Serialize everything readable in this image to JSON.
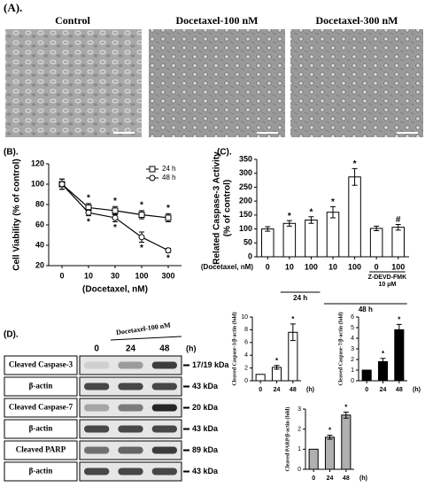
{
  "panels": {
    "a": "(A).",
    "b": "(B).",
    "c": "(C).",
    "d": "(D)."
  },
  "image_labels": [
    "Control",
    "Docetaxel-100 nM",
    "Docetaxel-300 nM"
  ],
  "blot": {
    "treatment": "Docetaxel-100 nM",
    "times": [
      "0",
      "24",
      "48"
    ],
    "time_unit": "(h)",
    "rows": [
      {
        "label": "Cleaved Caspase-3",
        "size": "17/19 kDa"
      },
      {
        "label": "β-actin",
        "size": "43 kDa"
      },
      {
        "label": "Cleaved Caspase-7",
        "size": "20 kDa"
      },
      {
        "label": "β-actin",
        "size": "43 kDa"
      },
      {
        "label": "Cleaved PARP",
        "size": "89 kDa"
      },
      {
        "label": "β-actin",
        "size": "43 kDa"
      }
    ]
  },
  "chart_data": [
    {
      "type": "line",
      "x_label": "(Docetaxel, nM)",
      "y_label": "Cell Viability (% of control)",
      "categories": [
        "0",
        "10",
        "30",
        "100",
        "300"
      ],
      "series": [
        {
          "name": "24 h",
          "marker": "square",
          "color": "#000000",
          "values": [
            100,
            77,
            74,
            70,
            67
          ],
          "errors": [
            5,
            4,
            4,
            4,
            4
          ],
          "annotations": [
            null,
            "*",
            "*",
            "*",
            "*"
          ]
        },
        {
          "name": "48 h",
          "marker": "circle",
          "color": "#000000",
          "values": [
            100,
            72,
            67,
            48,
            35
          ],
          "errors": [
            5,
            3,
            4,
            5,
            2
          ],
          "annotations": [
            null,
            "*",
            "*",
            "*",
            "*"
          ]
        }
      ],
      "ylim": [
        20,
        120
      ],
      "yticks": [
        20,
        40,
        60,
        80,
        100,
        120
      ],
      "legend": "upper right"
    },
    {
      "type": "bar",
      "y_label": "Related Caspase-3 Activity",
      "y_label_sub": "(% of control)",
      "x_label": "(Docetaxel, nM)",
      "categories": [
        "0",
        "10",
        "100",
        "10",
        "100",
        "0",
        "100"
      ],
      "values": [
        100,
        120,
        132,
        160,
        287,
        102,
        106
      ],
      "errors": [
        8,
        10,
        12,
        20,
        30,
        8,
        10
      ],
      "annotations": [
        null,
        "*",
        "*",
        "*",
        "*",
        null,
        "#"
      ],
      "color": "#ffffff",
      "ylim": [
        0,
        350
      ],
      "yticks": [
        0,
        50,
        100,
        150,
        200,
        250,
        300,
        350
      ],
      "treatment": {
        "label": "Z-DEVD-FMK",
        "dose": "10 μM"
      },
      "groups": [
        {
          "label": "24 h"
        },
        {
          "label": "48 h"
        }
      ]
    },
    {
      "type": "bar",
      "y_label": "Cleaved Caspase-3/β-actin (fold)",
      "categories": [
        "0",
        "24",
        "48"
      ],
      "x_unit": "(h)",
      "values": [
        1,
        2.1,
        7.6
      ],
      "errors": [
        0,
        0.3,
        1.3
      ],
      "annotations": [
        null,
        "*",
        "*"
      ],
      "color": "#ffffff",
      "ylim": [
        0,
        10
      ],
      "yticks": [
        0,
        2,
        4,
        6,
        8,
        10
      ]
    },
    {
      "type": "bar",
      "y_label": "Cleaved Caspase-7/β-actin (fold)",
      "categories": [
        "0",
        "24",
        "48"
      ],
      "x_unit": "(h)",
      "values": [
        1,
        1.8,
        4.8
      ],
      "errors": [
        0,
        0.3,
        0.5
      ],
      "annotations": [
        null,
        "*",
        "*"
      ],
      "color": "#000000",
      "ylim": [
        0,
        6
      ],
      "yticks": [
        0,
        1,
        2,
        3,
        4,
        5,
        6
      ]
    },
    {
      "type": "bar",
      "y_label": "Cleaved PARP/β-actin (fold)",
      "categories": [
        "0",
        "24",
        "48"
      ],
      "x_unit": "(h)",
      "values": [
        1,
        1.6,
        2.7
      ],
      "errors": [
        0,
        0.1,
        0.15
      ],
      "annotations": [
        null,
        "*",
        "*"
      ],
      "color": "#b0b0b0",
      "ylim": [
        0,
        3
      ],
      "yticks": [
        0,
        1,
        2,
        3
      ]
    }
  ]
}
